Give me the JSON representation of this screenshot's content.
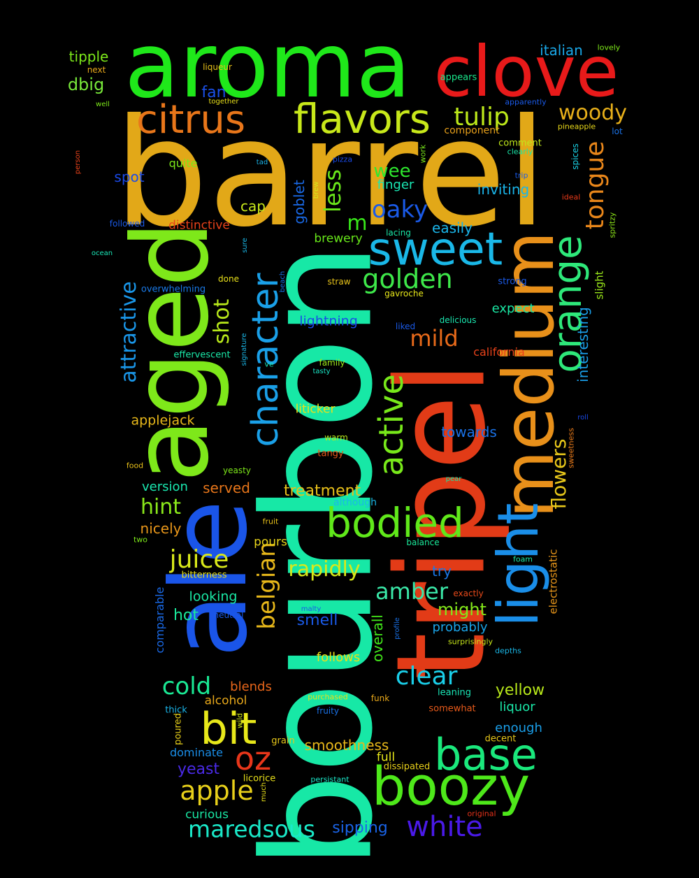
{
  "words": [
    {
      "text": "barrel",
      "color": "#e2a818"
    },
    {
      "text": "bourbon",
      "color": "#17e8a6"
    },
    {
      "text": "tripel",
      "color": "#e23b17"
    },
    {
      "text": "aroma",
      "color": "#1fe81a"
    },
    {
      "text": "ale",
      "color": "#1a55e8"
    },
    {
      "text": "aged",
      "color": "#7ee81a"
    },
    {
      "text": "clove",
      "color": "#e81a1a"
    },
    {
      "text": "medium",
      "color": "#e8901a"
    },
    {
      "text": "light",
      "color": "#1a8ee8"
    },
    {
      "text": "boozy",
      "color": "#4ee81a"
    },
    {
      "text": "sweet",
      "color": "#1ab8e8"
    },
    {
      "text": "flavors",
      "color": "#c8e81a"
    },
    {
      "text": "citrus",
      "color": "#e8761a"
    },
    {
      "text": "character",
      "color": "#1aa0e8"
    },
    {
      "text": "active",
      "color": "#78e81a"
    },
    {
      "text": "bodied",
      "color": "#60e81a"
    },
    {
      "text": "orange",
      "color": "#2ee87a"
    },
    {
      "text": "base",
      "color": "#1ae87c"
    },
    {
      "text": "bit",
      "color": "#e8e81a"
    },
    {
      "text": "white",
      "color": "#4a1ae8"
    },
    {
      "text": "oz",
      "color": "#e8361a"
    },
    {
      "text": "apple",
      "color": "#e8d01a"
    },
    {
      "text": "maredsous",
      "color": "#1ae8c8"
    },
    {
      "text": "juice",
      "color": "#d8e81a"
    },
    {
      "text": "golden",
      "color": "#3ee84a"
    },
    {
      "text": "tulip",
      "color": "#bce81a"
    },
    {
      "text": "woody",
      "color": "#e8b01a"
    },
    {
      "text": "tongue",
      "color": "#e8861a"
    },
    {
      "text": "oaky",
      "color": "#1a5ae8"
    },
    {
      "text": "mild",
      "color": "#e86a1a"
    },
    {
      "text": "belgian",
      "color": "#e8b81a"
    },
    {
      "text": "attractive",
      "color": "#1a96e8"
    },
    {
      "text": "clear",
      "color": "#1acee8"
    },
    {
      "text": "flowers",
      "color": "#e8c81a"
    },
    {
      "text": "cold",
      "color": "#1ae894"
    },
    {
      "text": "amber",
      "color": "#3ae8a8"
    },
    {
      "text": "less",
      "color": "#6ae81a"
    },
    {
      "text": "m",
      "color": "#38e81a"
    },
    {
      "text": "shot",
      "color": "#b8e81a"
    },
    {
      "text": "rapidly",
      "color": "#d8e81a"
    },
    {
      "text": "hint",
      "color": "#8ae81a"
    },
    {
      "text": "wee",
      "color": "#2ee82e"
    },
    {
      "text": "yellow",
      "color": "#b8e81a"
    },
    {
      "text": "smoothness",
      "color": "#e8b81a"
    },
    {
      "text": "treatment",
      "color": "#e8c01a"
    },
    {
      "text": "might",
      "color": "#84e81a"
    },
    {
      "text": "interesting",
      "color": "#1a9ee8"
    },
    {
      "text": "overall",
      "color": "#42e81a"
    },
    {
      "text": "goblet",
      "color": "#1a6ae8"
    },
    {
      "text": "italian",
      "color": "#1aa8e8"
    },
    {
      "text": "tipple",
      "color": "#7ce81a"
    },
    {
      "text": "dbig",
      "color": "#78e83a"
    },
    {
      "text": "fan",
      "color": "#1a50e8"
    },
    {
      "text": "spot",
      "color": "#1a4ae8"
    },
    {
      "text": "quite",
      "color": "#7ce81a"
    },
    {
      "text": "cap",
      "color": "#c8e81a"
    },
    {
      "text": "finger",
      "color": "#1ae8b4"
    },
    {
      "text": "inviting",
      "color": "#1ab4e8"
    },
    {
      "text": "easily",
      "color": "#1ab4e8"
    },
    {
      "text": "distinctive",
      "color": "#e8421a"
    },
    {
      "text": "brewery",
      "color": "#68e81a"
    },
    {
      "text": "expect",
      "color": "#1ae8a4"
    },
    {
      "text": "lightning",
      "color": "#1a4ae8"
    },
    {
      "text": "applejack",
      "color": "#e8b81a"
    },
    {
      "text": "liticker",
      "color": "#e8e01a"
    },
    {
      "text": "towards",
      "color": "#1a72e8"
    },
    {
      "text": "served",
      "color": "#e8761a"
    },
    {
      "text": "version",
      "color": "#1ae8b0"
    },
    {
      "text": "nicely",
      "color": "#e8961a"
    },
    {
      "text": "pours",
      "color": "#e8d41a"
    },
    {
      "text": "looking",
      "color": "#1ae8a4"
    },
    {
      "text": "hot",
      "color": "#1ae89a"
    },
    {
      "text": "smell",
      "color": "#1a5ae8"
    },
    {
      "text": "probably",
      "color": "#1aa4e8"
    },
    {
      "text": "try",
      "color": "#1a78e8"
    },
    {
      "text": "follows",
      "color": "#e8e01a"
    },
    {
      "text": "blends",
      "color": "#e8661a"
    },
    {
      "text": "alcohol",
      "color": "#e8a81a"
    },
    {
      "text": "liquor",
      "color": "#1ae8a8"
    },
    {
      "text": "enough",
      "color": "#1a9ee8"
    },
    {
      "text": "dominate",
      "color": "#1a8ee8"
    },
    {
      "text": "yeast",
      "color": "#4a2ae8"
    },
    {
      "text": "full",
      "color": "#e8e81a"
    },
    {
      "text": "curious",
      "color": "#1ae8a4"
    },
    {
      "text": "sipping",
      "color": "#1a64e8"
    },
    {
      "text": "comparable",
      "color": "#1a6ae8"
    },
    {
      "text": "electrostatic",
      "color": "#e8961a"
    },
    {
      "text": "slight",
      "color": "#9ae81a"
    },
    {
      "text": "spices",
      "color": "#1ad4e8"
    },
    {
      "text": "spritzy",
      "color": "#8ee81a"
    },
    {
      "text": "appears",
      "color": "#1ae88c"
    },
    {
      "text": "lovely",
      "color": "#7ee81a"
    },
    {
      "text": "apparently",
      "color": "#1a5ae8"
    },
    {
      "text": "pineapple",
      "color": "#e8d81a"
    },
    {
      "text": "lot",
      "color": "#1a72e8"
    },
    {
      "text": "component",
      "color": "#e8a01a"
    },
    {
      "text": "comment",
      "color": "#c0e81a"
    },
    {
      "text": "clearly",
      "color": "#1ae8a8"
    },
    {
      "text": "work",
      "color": "#7ae81a"
    },
    {
      "text": "trip",
      "color": "#1a5ae8"
    },
    {
      "text": "ideal",
      "color": "#e83a1a"
    },
    {
      "text": "strong",
      "color": "#1a5ae8"
    },
    {
      "text": "lacing",
      "color": "#1ae8a8"
    },
    {
      "text": "straw",
      "color": "#e8c41a"
    },
    {
      "text": "gavroche",
      "color": "#e8e81a"
    },
    {
      "text": "delicious",
      "color": "#1ae8b0"
    },
    {
      "text": "liked",
      "color": "#1a5ae8"
    },
    {
      "text": "california",
      "color": "#e8421a"
    },
    {
      "text": "family",
      "color": "#9ee81a"
    },
    {
      "text": "tasty",
      "color": "#1ae8c8"
    },
    {
      "text": "warm",
      "color": "#b8e81a"
    },
    {
      "text": "tangy",
      "color": "#e85a1a"
    },
    {
      "text": "although",
      "color": "#1ab8e8"
    },
    {
      "text": "balance",
      "color": "#1ae89a"
    },
    {
      "text": "foam",
      "color": "#1ae8a4"
    },
    {
      "text": "exactly",
      "color": "#e84a1a"
    },
    {
      "text": "surprisingly",
      "color": "#c8e81a"
    },
    {
      "text": "depths",
      "color": "#1ab8e8"
    },
    {
      "text": "leaning",
      "color": "#1ae8b8"
    },
    {
      "text": "somewhat",
      "color": "#e85a1a"
    },
    {
      "text": "decent",
      "color": "#e8c81a"
    },
    {
      "text": "dissipated",
      "color": "#e8d01a"
    },
    {
      "text": "persistant",
      "color": "#1ae8c8"
    },
    {
      "text": "original",
      "color": "#e8321a"
    },
    {
      "text": "purchased",
      "color": "#e8e01a"
    },
    {
      "text": "fruity",
      "color": "#1a72e8"
    },
    {
      "text": "funk",
      "color": "#e8a81a"
    },
    {
      "text": "grain",
      "color": "#e8c81a"
    },
    {
      "text": "licorice",
      "color": "#e8e01a"
    },
    {
      "text": "much",
      "color": "#e8e01a"
    },
    {
      "text": "wild",
      "color": "#d0e81a"
    },
    {
      "text": "poured",
      "color": "#e8d01a"
    },
    {
      "text": "thick",
      "color": "#1ab4e8"
    },
    {
      "text": "malty",
      "color": "#1a5ae8"
    },
    {
      "text": "neutral",
      "color": "#1a5ae8"
    },
    {
      "text": "profile",
      "color": "#1a72e8"
    },
    {
      "text": "bitterness",
      "color": "#e8e01a"
    },
    {
      "text": "fruit",
      "color": "#e8c01a"
    },
    {
      "text": "two",
      "color": "#7ee81a"
    },
    {
      "text": "food",
      "color": "#e8c01a"
    },
    {
      "text": "yeasty",
      "color": "#7ee81a"
    },
    {
      "text": "pear",
      "color": "#1ae8a4"
    },
    {
      "text": "roll",
      "color": "#1a4ae8"
    },
    {
      "text": "sweetness",
      "color": "#e87a1a"
    },
    {
      "text": "effervescent",
      "color": "#1ae8a8"
    },
    {
      "text": "ve",
      "color": "#1ae8b8"
    },
    {
      "text": "signature",
      "color": "#1ab8e8"
    },
    {
      "text": "done",
      "color": "#e8e01a"
    },
    {
      "text": "overwhelming",
      "color": "#1a7ae8"
    },
    {
      "text": "beach",
      "color": "#1a72e8"
    },
    {
      "text": "sure",
      "color": "#1ab8e8"
    },
    {
      "text": "ocean",
      "color": "#1ae8b8"
    },
    {
      "text": "followed",
      "color": "#1a5ae8"
    },
    {
      "text": "brew",
      "color": "#d8e81a"
    },
    {
      "text": "tad",
      "color": "#1ab4e8"
    },
    {
      "text": "pizza",
      "color": "#1a4ae8"
    },
    {
      "text": "person",
      "color": "#e8421a"
    },
    {
      "text": "well",
      "color": "#7ee81a"
    },
    {
      "text": "next",
      "color": "#e8a81a"
    },
    {
      "text": "together",
      "color": "#e8e01a"
    },
    {
      "text": "liqueur",
      "color": "#e8c01a"
    }
  ]
}
